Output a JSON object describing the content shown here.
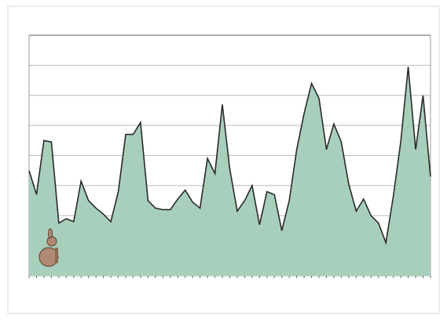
{
  "chart_data": {
    "type": "area",
    "categories": [
      null,
      null,
      null,
      null,
      null,
      null,
      null,
      null,
      null,
      null,
      null,
      null,
      null,
      null,
      null,
      null,
      null,
      null,
      null,
      null,
      null,
      null,
      null,
      null,
      null,
      null,
      null,
      null,
      null,
      null,
      null,
      null,
      null,
      null,
      null,
      null,
      null,
      null,
      null,
      null,
      null,
      null,
      null,
      null,
      null,
      null,
      null,
      null,
      null,
      null,
      null,
      null,
      null,
      null,
      null
    ],
    "values": [
      3.5,
      2.7,
      4.5,
      4.45,
      1.75,
      1.9,
      1.8,
      3.15,
      2.5,
      2.25,
      2.05,
      1.8,
      2.8,
      4.7,
      4.7,
      5.1,
      2.5,
      2.25,
      2.2,
      2.2,
      2.55,
      2.85,
      2.45,
      2.25,
      3.9,
      3.4,
      5.7,
      3.55,
      2.15,
      2.5,
      3.0,
      1.7,
      2.8,
      2.7,
      1.5,
      2.5,
      4.2,
      5.4,
      6.4,
      5.9,
      4.2,
      5.05,
      4.45,
      3.05,
      2.15,
      2.55,
      2.0,
      1.75,
      1.1,
      2.65,
      4.45,
      6.95,
      4.2,
      6.0,
      3.3
    ],
    "color": "#a3ccb8",
    "line_color": "#2a2a2a",
    "ylim": [
      0,
      8
    ],
    "yticks": [
      0,
      1,
      2,
      3,
      4,
      5,
      6,
      7,
      8
    ],
    "grid": true
  }
}
